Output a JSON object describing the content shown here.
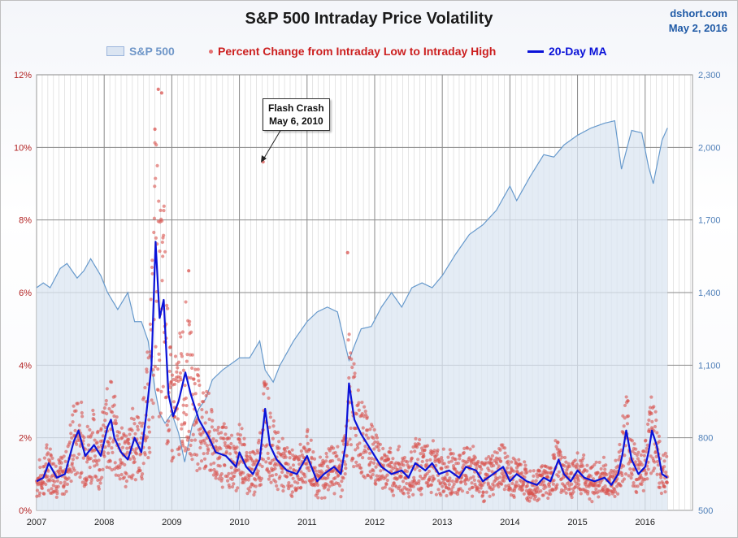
{
  "chart_data": {
    "type": "line",
    "title": "S&P 500 Intraday Price Volatility",
    "source": "dshort.com",
    "date": "May 2, 2016",
    "x_tick_labels": [
      "2007",
      "2008",
      "2009",
      "2010",
      "2011",
      "2012",
      "2013",
      "2014",
      "2015",
      "2016"
    ],
    "y_left_ticks": [
      "0%",
      "2%",
      "4%",
      "6%",
      "8%",
      "10%",
      "12%"
    ],
    "y_left_lim": [
      0,
      12
    ],
    "y_right_ticks": [
      "500",
      "800",
      "1,100",
      "1,400",
      "1,700",
      "2,000",
      "2,300"
    ],
    "y_right_lim": [
      500,
      2300
    ],
    "grid": true,
    "legend_position": "top",
    "series": [
      {
        "name": "S&P 500",
        "style": "area",
        "axis": "right",
        "color": "#6699cc",
        "fill": "#dbe5f2",
        "x": [
          2007.0,
          2007.1,
          2007.2,
          2007.35,
          2007.45,
          2007.6,
          2007.7,
          2007.8,
          2007.95,
          2008.05,
          2008.2,
          2008.35,
          2008.45,
          2008.55,
          2008.65,
          2008.75,
          2008.82,
          2008.9,
          2009.0,
          2009.1,
          2009.19,
          2009.3,
          2009.4,
          2009.5,
          2009.6,
          2009.75,
          2009.9,
          2010.0,
          2010.15,
          2010.3,
          2010.38,
          2010.5,
          2010.6,
          2010.8,
          2011.0,
          2011.15,
          2011.3,
          2011.45,
          2011.55,
          2011.62,
          2011.7,
          2011.8,
          2011.95,
          2012.1,
          2012.25,
          2012.4,
          2012.55,
          2012.7,
          2012.85,
          2013.0,
          2013.2,
          2013.4,
          2013.6,
          2013.8,
          2014.0,
          2014.1,
          2014.3,
          2014.5,
          2014.65,
          2014.8,
          2015.0,
          2015.2,
          2015.4,
          2015.55,
          2015.65,
          2015.8,
          2015.95,
          2016.05,
          2016.12,
          2016.25,
          2016.33
        ],
        "values": [
          1420,
          1440,
          1420,
          1500,
          1520,
          1460,
          1490,
          1540,
          1470,
          1400,
          1330,
          1400,
          1280,
          1280,
          1200,
          1000,
          900,
          860,
          900,
          820,
          700,
          850,
          920,
          960,
          1040,
          1080,
          1110,
          1130,
          1130,
          1200,
          1080,
          1030,
          1100,
          1200,
          1280,
          1320,
          1340,
          1320,
          1200,
          1120,
          1180,
          1250,
          1260,
          1340,
          1400,
          1340,
          1420,
          1440,
          1420,
          1470,
          1560,
          1640,
          1680,
          1740,
          1840,
          1780,
          1880,
          1970,
          1960,
          2010,
          2050,
          2080,
          2100,
          2110,
          1910,
          2070,
          2060,
          1920,
          1850,
          2030,
          2080
        ]
      },
      {
        "name": "Percent Change from Intraday Low to Intraday High",
        "style": "scatter",
        "axis": "left",
        "color": "#d9534f",
        "annotation_points": [
          {
            "x": 2008.8,
            "y": 11.6
          },
          {
            "x": 2008.85,
            "y": 11.5
          },
          {
            "x": 2008.75,
            "y": 10.5
          },
          {
            "x": 2010.35,
            "y": 9.6
          },
          {
            "x": 2011.6,
            "y": 7.1
          },
          {
            "x": 2009.25,
            "y": 6.6
          }
        ]
      },
      {
        "name": "20-Day MA",
        "style": "line",
        "axis": "left",
        "color": "#0a12d8",
        "x": [
          2007.0,
          2007.1,
          2007.18,
          2007.3,
          2007.42,
          2007.55,
          2007.62,
          2007.72,
          2007.85,
          2007.95,
          2008.05,
          2008.1,
          2008.15,
          2008.25,
          2008.35,
          2008.45,
          2008.55,
          2008.62,
          2008.7,
          2008.76,
          2008.82,
          2008.88,
          2008.95,
          2009.02,
          2009.1,
          2009.2,
          2009.28,
          2009.4,
          2009.55,
          2009.65,
          2009.8,
          2009.95,
          2010.0,
          2010.1,
          2010.2,
          2010.3,
          2010.38,
          2010.45,
          2010.55,
          2010.7,
          2010.85,
          2011.0,
          2011.15,
          2011.25,
          2011.4,
          2011.5,
          2011.57,
          2011.62,
          2011.7,
          2011.8,
          2011.9,
          2012.0,
          2012.1,
          2012.25,
          2012.4,
          2012.5,
          2012.6,
          2012.75,
          2012.85,
          2012.95,
          2013.1,
          2013.25,
          2013.35,
          2013.5,
          2013.6,
          2013.75,
          2013.9,
          2014.0,
          2014.1,
          2014.25,
          2014.4,
          2014.5,
          2014.6,
          2014.72,
          2014.8,
          2014.9,
          2015.0,
          2015.1,
          2015.25,
          2015.4,
          2015.5,
          2015.6,
          2015.66,
          2015.72,
          2015.8,
          2015.9,
          2016.0,
          2016.05,
          2016.1,
          2016.17,
          2016.25,
          2016.33
        ],
        "values": [
          0.8,
          0.9,
          1.3,
          0.9,
          1.0,
          1.9,
          2.2,
          1.5,
          1.8,
          1.5,
          2.3,
          2.5,
          2.0,
          1.6,
          1.4,
          2.0,
          1.6,
          2.6,
          4.0,
          7.4,
          5.3,
          5.8,
          3.2,
          2.6,
          3.0,
          3.8,
          3.2,
          2.5,
          2.0,
          1.6,
          1.5,
          1.2,
          1.6,
          1.2,
          1.0,
          1.4,
          2.8,
          1.8,
          1.4,
          1.1,
          1.0,
          1.5,
          0.8,
          1.0,
          1.2,
          1.0,
          1.8,
          3.5,
          2.5,
          2.1,
          1.8,
          1.5,
          1.2,
          1.0,
          1.1,
          0.9,
          1.3,
          1.1,
          1.3,
          1.0,
          1.1,
          0.9,
          1.2,
          1.1,
          0.8,
          1.0,
          1.2,
          0.8,
          1.0,
          0.8,
          0.7,
          0.9,
          0.8,
          1.4,
          1.0,
          0.8,
          1.1,
          0.9,
          0.8,
          0.9,
          0.7,
          1.0,
          1.5,
          2.2,
          1.4,
          1.0,
          1.2,
          1.6,
          2.2,
          1.8,
          1.0,
          0.9
        ]
      }
    ]
  },
  "legend": {
    "area_label": "S&P 500",
    "scatter_label": "Percent Change from Intraday Low to Intraday High",
    "line_label": "20-Day MA"
  },
  "annotation": {
    "line1": "Flash Crash",
    "line2": "May 6, 2010"
  }
}
